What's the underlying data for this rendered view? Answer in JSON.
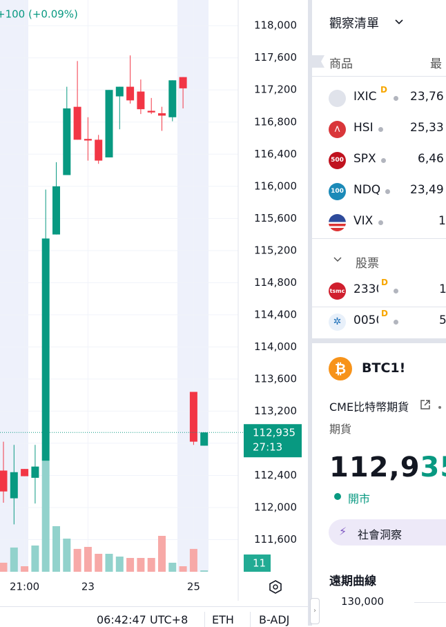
{
  "chart_data": {
    "type": "candlestick",
    "change_label": "+100 (+0.09%)",
    "categories": [
      null,
      null,
      "21:00",
      null,
      null,
      null,
      null,
      null,
      "23",
      null,
      null,
      null,
      null,
      null,
      null,
      null,
      null,
      null,
      "25",
      null
    ],
    "open": [
      112460,
      112115,
      112480,
      112370,
      112580,
      115400,
      116140,
      116990,
      116590,
      116580,
      116360,
      117120,
      117240,
      117180,
      116940,
      116910,
      116860,
      117360,
      113440,
      112770
    ],
    "high": [
      112820,
      112780,
      112480,
      112780,
      115960,
      116300,
      117240,
      117560,
      116860,
      116640,
      117200,
      117240,
      117630,
      117330,
      117100,
      116990,
      117320,
      117360,
      113440,
      112935
    ],
    "low": [
      112060,
      111790,
      112390,
      112050,
      112580,
      115400,
      116140,
      116580,
      116320,
      116280,
      116360,
      116710,
      117030,
      116900,
      116900,
      116690,
      116810,
      116970,
      112780,
      112770
    ],
    "close": [
      112200,
      112440,
      112390,
      112510,
      115350,
      116000,
      116970,
      116580,
      116570,
      116320,
      117200,
      117240,
      117070,
      116960,
      116920,
      116880,
      117320,
      117220,
      112820,
      112935
    ],
    "volume": [
      72,
      193,
      44,
      209,
      880,
      363,
      264,
      182,
      198,
      143,
      143,
      121,
      110,
      110,
      110,
      286,
      72,
      44,
      182,
      11
    ],
    "volume_lim": [
      0,
      1100
    ],
    "ylim": [
      111200,
      118320
    ],
    "yticks": [
      {
        "value": 111600,
        "label": "111,600"
      },
      {
        "value": 112000,
        "label": "112,000"
      },
      {
        "value": 112400,
        "label": "112,400"
      },
      {
        "value": 112800,
        "label": "112,800"
      },
      {
        "value": 113200,
        "label": "113,200"
      },
      {
        "value": 113600,
        "label": "113,600"
      },
      {
        "value": 114000,
        "label": "114,000"
      },
      {
        "value": 114400,
        "label": "114,400"
      },
      {
        "value": 114800,
        "label": "114,800"
      },
      {
        "value": 115200,
        "label": "115,200"
      },
      {
        "value": 115600,
        "label": "115,600"
      },
      {
        "value": 116000,
        "label": "116,000"
      },
      {
        "value": 116400,
        "label": "116,400"
      },
      {
        "value": 116800,
        "label": "116,800"
      },
      {
        "value": 117200,
        "label": "117,200"
      },
      {
        "value": 117600,
        "label": "117,600"
      },
      {
        "value": 118000,
        "label": "118,000"
      }
    ],
    "last_price": {
      "value": 112935,
      "label": "112,935"
    },
    "countdown": "27:13",
    "last_volume": 11,
    "colors": {
      "up": "#089981",
      "down": "#f23645",
      "up_volume": "#92d2cc",
      "down_volume": "#f7a9a7"
    },
    "grid": true
  },
  "status_bar": {
    "time": "06:42:47 UTC+8",
    "session": "ETH",
    "adjustment": "B-ADJ"
  },
  "watchlist": {
    "title": "觀察清單",
    "columns": [
      "商品",
      "最"
    ],
    "rows": [
      {
        "symbol": "IXIC",
        "badge": "D",
        "price": "23,76"
      },
      {
        "symbol": "HSI",
        "price": "25,33"
      },
      {
        "symbol": "SPX",
        "icon": "500",
        "price": "6,46"
      },
      {
        "symbol": "NDQ",
        "icon": "100",
        "price": "23,49"
      },
      {
        "symbol": "VIX",
        "price": "1"
      }
    ],
    "section": "股票",
    "stocks": [
      {
        "symbol": "2330",
        "icon": "tsmc",
        "badge": "D",
        "price": "1"
      },
      {
        "symbol": "0050",
        "badge": "D",
        "price": "5"
      }
    ]
  },
  "detail": {
    "symbol": "BTC1!",
    "name": "CME比特幣期貨",
    "kind": "期貨",
    "price_main": "112,9",
    "price_tail": "35",
    "status": "開市",
    "button": "社會洞察",
    "section": "遠期曲線",
    "curve_tick": "130,000"
  }
}
